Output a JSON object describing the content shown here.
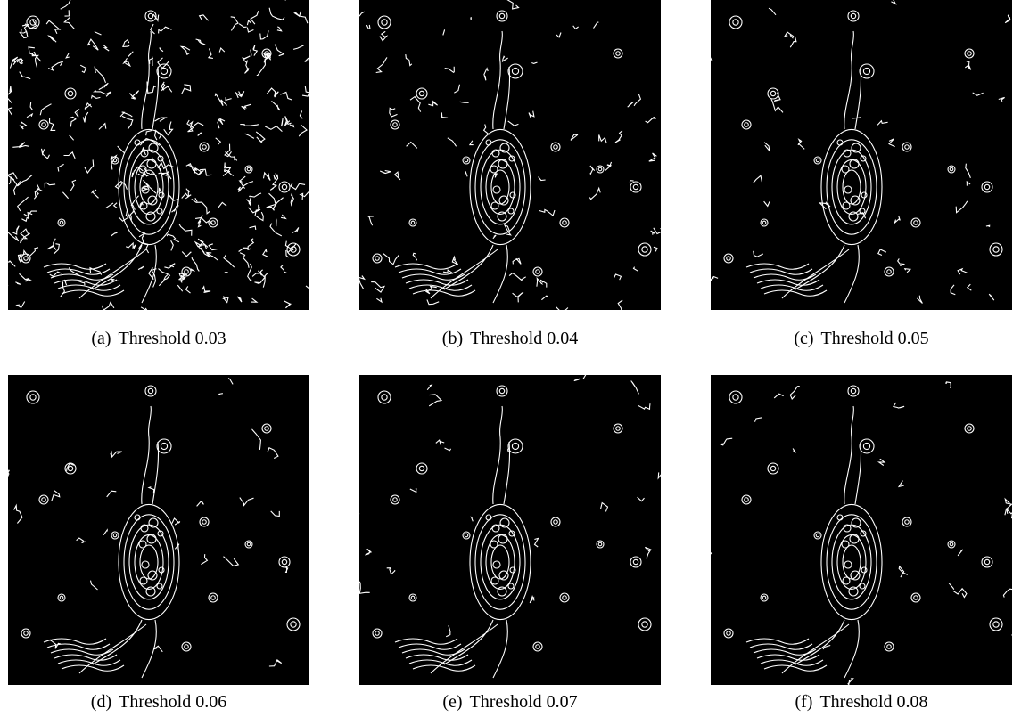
{
  "figures": [
    {
      "label": "(a)",
      "caption": "Threshold 0.03"
    },
    {
      "label": "(b)",
      "caption": "Threshold 0.04"
    },
    {
      "label": "(c)",
      "caption": "Threshold 0.05"
    },
    {
      "label": "(d)",
      "caption": "Threshold 0.06"
    },
    {
      "label": "(e)",
      "caption": "Threshold 0.07"
    },
    {
      "label": "(f)",
      "caption": "Threshold 0.08"
    }
  ]
}
